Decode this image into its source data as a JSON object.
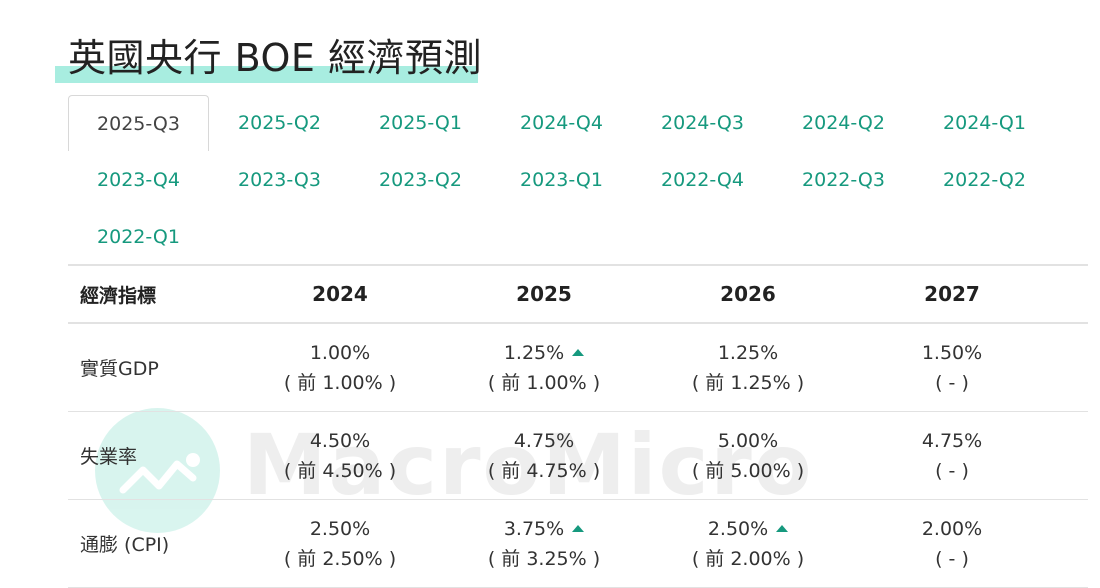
{
  "header": {
    "title": "英國央行 BOE 經濟預測"
  },
  "tabs": [
    {
      "label": "2025-Q3",
      "active": true
    },
    {
      "label": "2025-Q2"
    },
    {
      "label": "2025-Q1"
    },
    {
      "label": "2024-Q4"
    },
    {
      "label": "2024-Q3"
    },
    {
      "label": "2024-Q2"
    },
    {
      "label": "2024-Q1"
    },
    {
      "label": "2023-Q4"
    },
    {
      "label": "2023-Q3"
    },
    {
      "label": "2023-Q2"
    },
    {
      "label": "2023-Q1"
    },
    {
      "label": "2022-Q4"
    },
    {
      "label": "2022-Q3"
    },
    {
      "label": "2022-Q2"
    },
    {
      "label": "2022-Q1"
    }
  ],
  "table": {
    "header_label": "經濟指標",
    "years": [
      "2024",
      "2025",
      "2026",
      "2027"
    ],
    "rows": [
      {
        "label": "實質GDP",
        "cells": [
          {
            "current": "1.00%",
            "previous": "( 前 1.00% )",
            "trend": ""
          },
          {
            "current": "1.25%",
            "previous": "( 前 1.00% )",
            "trend": "up"
          },
          {
            "current": "1.25%",
            "previous": "( 前 1.25% )",
            "trend": ""
          },
          {
            "current": "1.50%",
            "previous": "( - )",
            "trend": ""
          }
        ]
      },
      {
        "label": "失業率",
        "cells": [
          {
            "current": "4.50%",
            "previous": "( 前 4.50% )",
            "trend": ""
          },
          {
            "current": "4.75%",
            "previous": "( 前 4.75% )",
            "trend": ""
          },
          {
            "current": "5.00%",
            "previous": "( 前 5.00% )",
            "trend": ""
          },
          {
            "current": "4.75%",
            "previous": "( - )",
            "trend": ""
          }
        ]
      },
      {
        "label": "通膨 (CPI)",
        "cells": [
          {
            "current": "2.50%",
            "previous": "( 前 2.50% )",
            "trend": ""
          },
          {
            "current": "3.75%",
            "previous": "( 前 3.25% )",
            "trend": "up"
          },
          {
            "current": "2.50%",
            "previous": "( 前 2.00% )",
            "trend": "up"
          },
          {
            "current": "2.00%",
            "previous": "( - )",
            "trend": ""
          }
        ]
      }
    ]
  },
  "watermark": {
    "text": "MacroMicro"
  },
  "colors": {
    "accent": "#16997e",
    "highlight": "#a8ede0",
    "trend_up": "#16997e"
  }
}
